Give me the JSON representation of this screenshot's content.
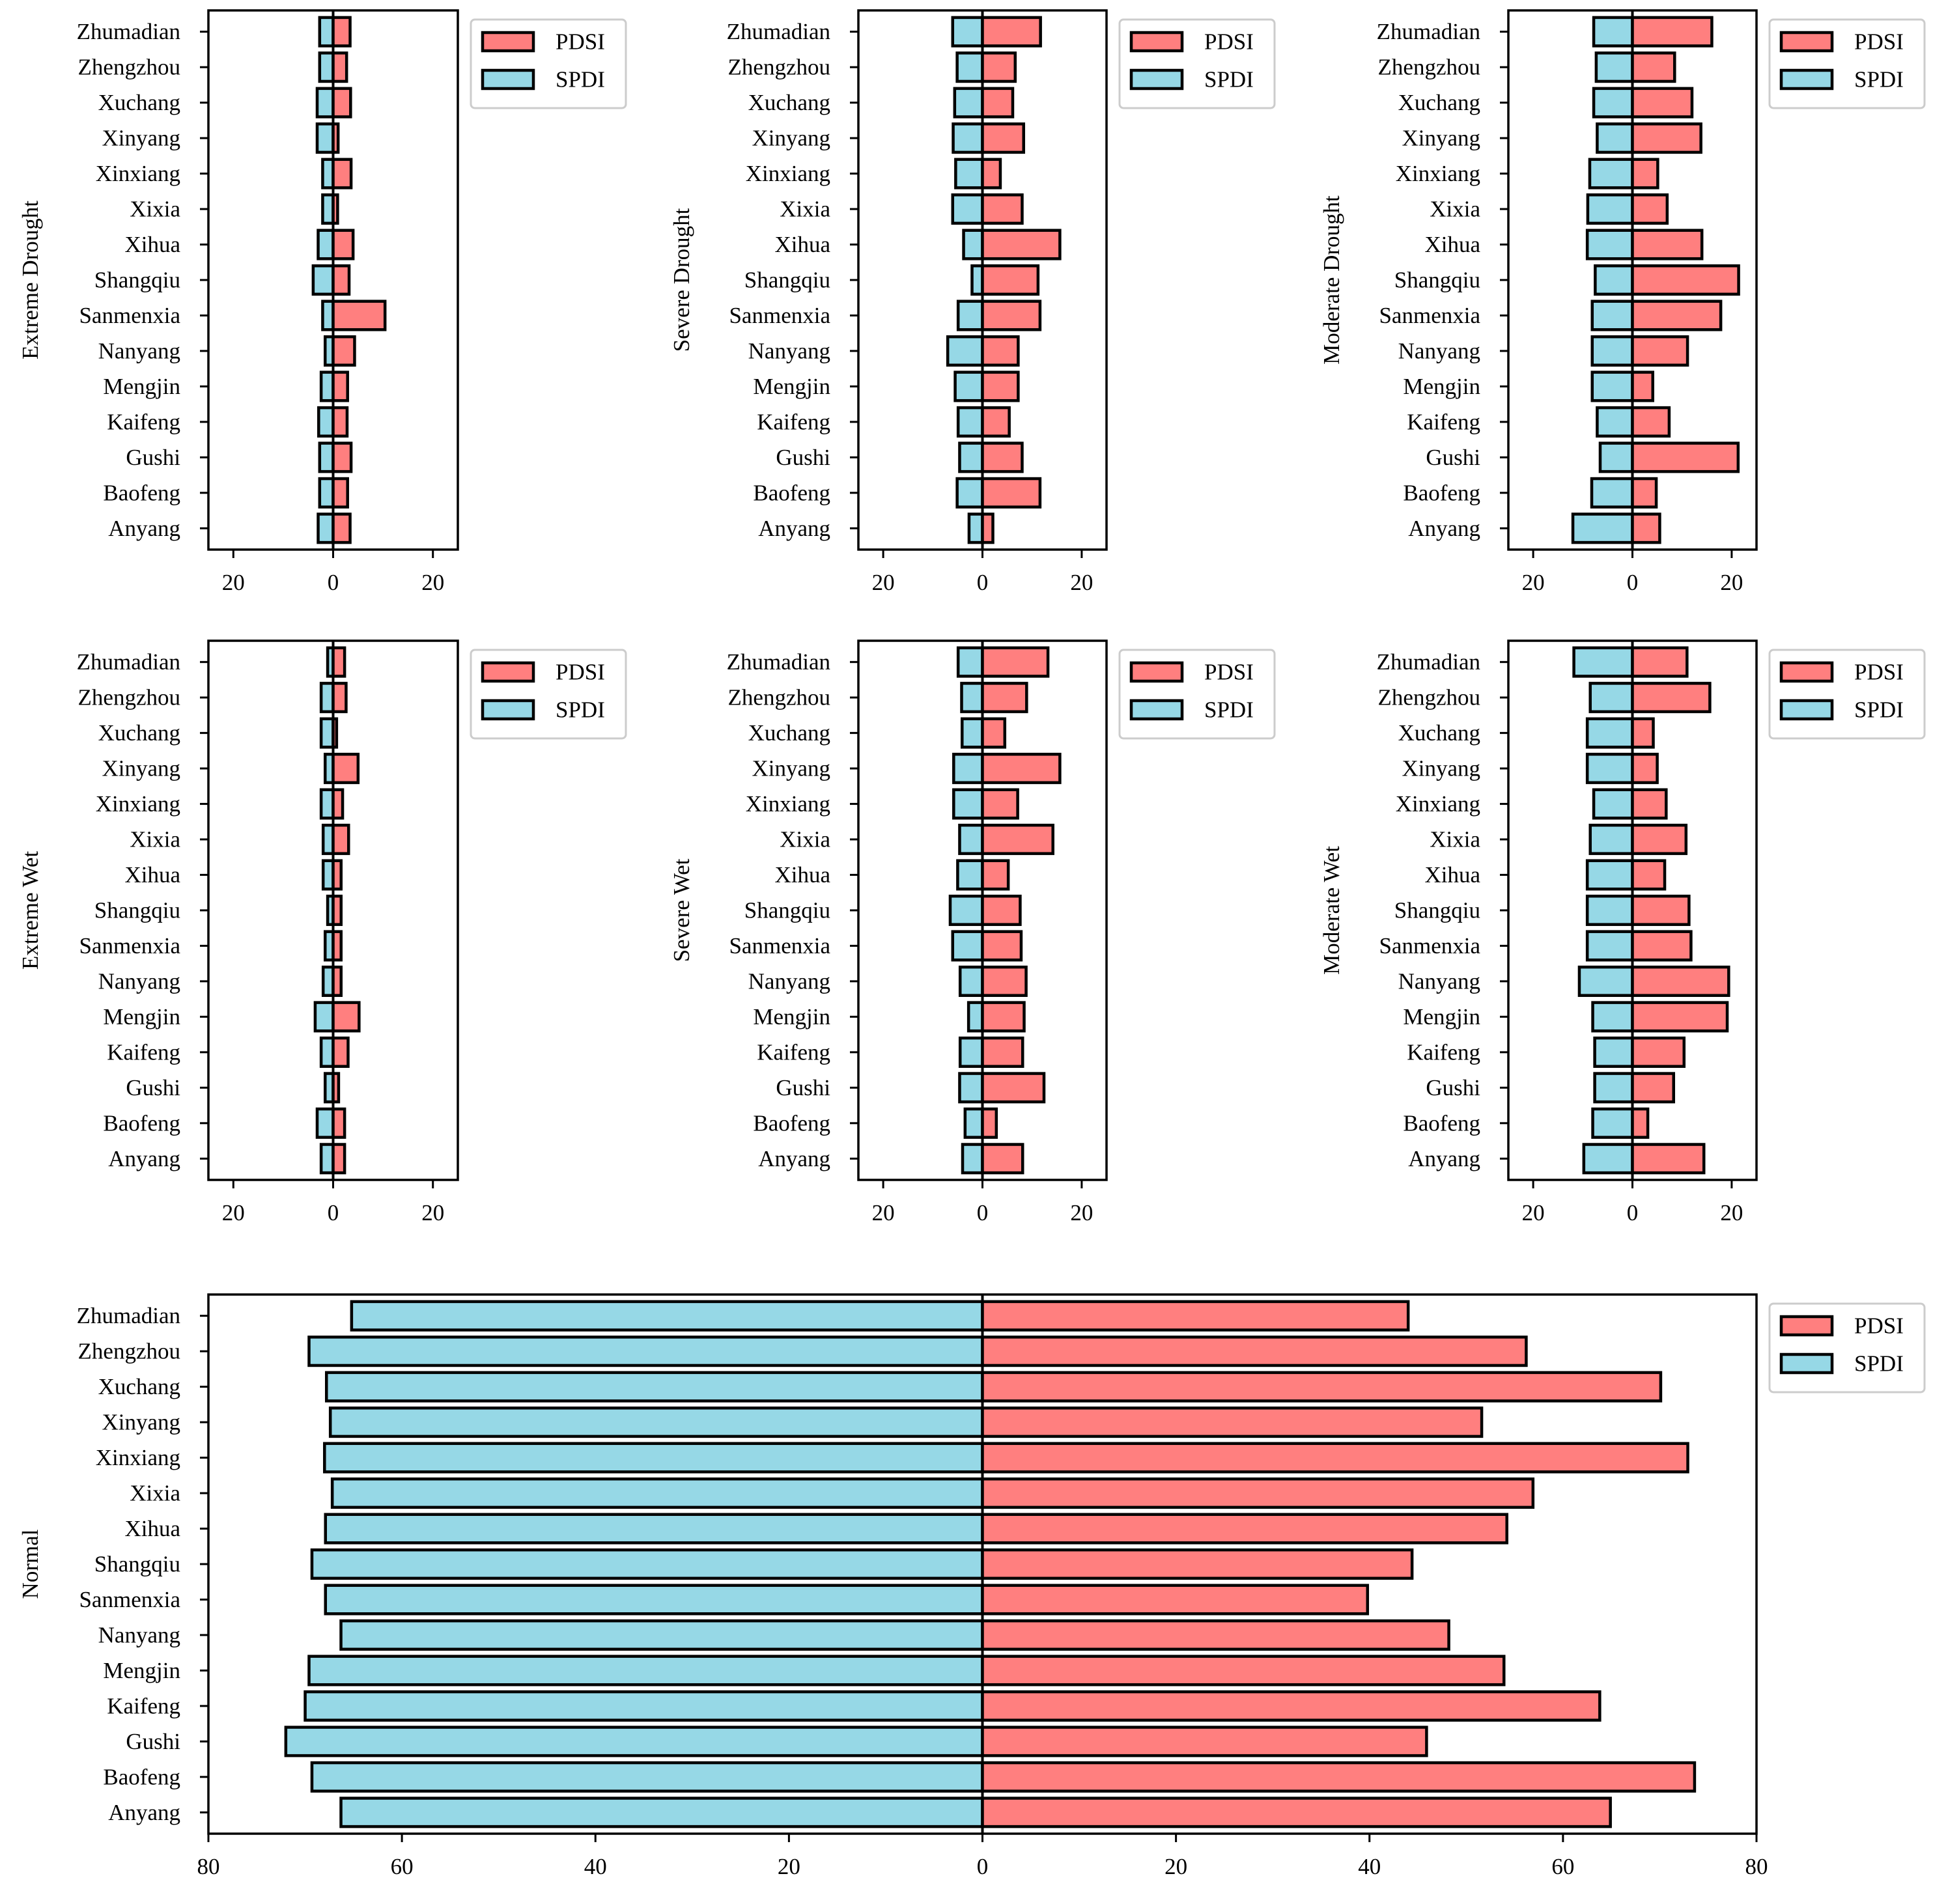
{
  "colors": {
    "pdsi": "#FF7F7F",
    "spdi": "#96D8E6",
    "edge": "#000000"
  },
  "legend_labels": [
    "PDSI",
    "SPDI"
  ],
  "chart_data": [
    {
      "type": "bar",
      "ylabel": "Extreme Drought",
      "categories": [
        "Zhumadian",
        "Zhengzhou",
        "Xuchang",
        "Xinyang",
        "Xinxiang",
        "Xixia",
        "Xihua",
        "Shangqiu",
        "Sanmenxia",
        "Nanyang",
        "Mengjin",
        "Kaifeng",
        "Gushi",
        "Baofeng",
        "Anyang"
      ],
      "series": [
        {
          "name": "PDSI",
          "values": [
            3.4,
            2.7,
            3.5,
            1.0,
            3.6,
            0.9,
            4.0,
            3.2,
            10.4,
            4.3,
            2.9,
            2.8,
            3.6,
            2.9,
            3.4
          ]
        },
        {
          "name": "SPDI",
          "values": [
            -2.7,
            -2.7,
            -3.2,
            -3.2,
            -2.1,
            -2.1,
            -3.0,
            -4.0,
            -2.1,
            -1.6,
            -2.4,
            -2.9,
            -2.7,
            -2.7,
            -3.0
          ]
        }
      ],
      "xlim": [
        -25,
        25
      ],
      "xticks": [
        -20,
        0,
        20
      ],
      "xtick_labels": [
        "20",
        "0",
        "20"
      ]
    },
    {
      "type": "bar",
      "ylabel": "Severe Drought",
      "categories": [
        "Zhumadian",
        "Zhengzhou",
        "Xuchang",
        "Xinyang",
        "Xinxiang",
        "Xixia",
        "Xihua",
        "Shangqiu",
        "Sanmenxia",
        "Nanyang",
        "Mengjin",
        "Kaifeng",
        "Gushi",
        "Baofeng",
        "Anyang"
      ],
      "series": [
        {
          "name": "PDSI",
          "values": [
            11.7,
            6.6,
            6.1,
            8.3,
            3.6,
            8.0,
            15.6,
            11.2,
            11.6,
            7.2,
            7.2,
            5.4,
            8.0,
            11.6,
            2.1
          ]
        },
        {
          "name": "SPDI",
          "values": [
            -6.0,
            -5.1,
            -5.6,
            -5.9,
            -5.4,
            -6.0,
            -3.8,
            -2.1,
            -4.9,
            -7.0,
            -5.5,
            -4.9,
            -4.6,
            -5.1,
            -2.7
          ]
        }
      ],
      "xlim": [
        -25,
        25
      ],
      "xticks": [
        -20,
        0,
        20
      ],
      "xtick_labels": [
        "20",
        "0",
        "20"
      ]
    },
    {
      "type": "bar",
      "ylabel": "Moderate Drought",
      "categories": [
        "Zhumadian",
        "Zhengzhou",
        "Xuchang",
        "Xinyang",
        "Xinxiang",
        "Xixia",
        "Xihua",
        "Shangqiu",
        "Sanmenxia",
        "Nanyang",
        "Mengjin",
        "Kaifeng",
        "Gushi",
        "Baofeng",
        "Anyang"
      ],
      "series": [
        {
          "name": "PDSI",
          "values": [
            16.0,
            8.5,
            12.0,
            13.8,
            5.1,
            7.0,
            14.0,
            21.4,
            17.8,
            11.1,
            4.1,
            7.4,
            21.3,
            4.8,
            5.5
          ]
        },
        {
          "name": "SPDI",
          "values": [
            -7.8,
            -7.3,
            -7.8,
            -7.1,
            -8.6,
            -9.0,
            -9.1,
            -7.5,
            -8.1,
            -8.1,
            -8.1,
            -7.1,
            -6.5,
            -8.2,
            -12.0
          ]
        }
      ],
      "xlim": [
        -25,
        25
      ],
      "xticks": [
        -20,
        0,
        20
      ],
      "xtick_labels": [
        "20",
        "0",
        "20"
      ]
    },
    {
      "type": "bar",
      "ylabel": "Extreme Wet",
      "categories": [
        "Zhumadian",
        "Zhengzhou",
        "Xuchang",
        "Xinyang",
        "Xinxiang",
        "Xixia",
        "Xihua",
        "Shangqiu",
        "Sanmenxia",
        "Nanyang",
        "Mengjin",
        "Kaifeng",
        "Gushi",
        "Baofeng",
        "Anyang"
      ],
      "series": [
        {
          "name": "PDSI",
          "values": [
            2.3,
            2.6,
            0.7,
            5.0,
            1.9,
            3.1,
            1.6,
            1.6,
            1.6,
            1.6,
            5.2,
            3.0,
            1.1,
            2.3,
            2.3
          ]
        },
        {
          "name": "SPDI",
          "values": [
            -1.1,
            -2.4,
            -2.4,
            -1.6,
            -2.4,
            -2.0,
            -2.0,
            -1.1,
            -1.6,
            -2.0,
            -3.6,
            -2.4,
            -1.6,
            -3.2,
            -2.4
          ]
        }
      ],
      "xlim": [
        -25,
        25
      ],
      "xticks": [
        -20,
        0,
        20
      ],
      "xtick_labels": [
        "20",
        "0",
        "20"
      ]
    },
    {
      "type": "bar",
      "ylabel": "Severe Wet",
      "categories": [
        "Zhumadian",
        "Zhengzhou",
        "Xuchang",
        "Xinyang",
        "Xinxiang",
        "Xixia",
        "Xihua",
        "Shangqiu",
        "Sanmenxia",
        "Nanyang",
        "Mengjin",
        "Kaifeng",
        "Gushi",
        "Baofeng",
        "Anyang"
      ],
      "series": [
        {
          "name": "PDSI",
          "values": [
            13.2,
            8.9,
            4.5,
            15.6,
            7.1,
            14.2,
            5.2,
            7.6,
            7.8,
            8.8,
            8.4,
            8.1,
            12.4,
            2.8,
            8.1
          ]
        },
        {
          "name": "SPDI",
          "values": [
            -4.9,
            -4.2,
            -4.1,
            -5.8,
            -5.8,
            -4.6,
            -5.0,
            -6.5,
            -6.0,
            -4.5,
            -2.8,
            -4.5,
            -4.6,
            -3.5,
            -4.0
          ]
        }
      ],
      "xlim": [
        -25,
        25
      ],
      "xticks": [
        -20,
        0,
        20
      ],
      "xtick_labels": [
        "20",
        "0",
        "20"
      ]
    },
    {
      "type": "bar",
      "ylabel": "Moderate Wet",
      "categories": [
        "Zhumadian",
        "Zhengzhou",
        "Xuchang",
        "Xinyang",
        "Xinxiang",
        "Xixia",
        "Xihua",
        "Shangqiu",
        "Sanmenxia",
        "Nanyang",
        "Mengjin",
        "Kaifeng",
        "Gushi",
        "Baofeng",
        "Anyang"
      ],
      "series": [
        {
          "name": "PDSI",
          "values": [
            11.0,
            15.6,
            4.2,
            5.0,
            6.8,
            10.8,
            6.5,
            11.4,
            11.8,
            19.4,
            19.1,
            10.4,
            8.3,
            3.1,
            14.4
          ]
        },
        {
          "name": "SPDI",
          "values": [
            -11.8,
            -8.5,
            -9.1,
            -9.1,
            -7.8,
            -8.5,
            -9.1,
            -9.1,
            -9.1,
            -10.7,
            -8.0,
            -7.6,
            -7.6,
            -8.0,
            -9.8
          ]
        }
      ],
      "xlim": [
        -25,
        25
      ],
      "xticks": [
        -20,
        0,
        20
      ],
      "xtick_labels": [
        "20",
        "0",
        "20"
      ]
    },
    {
      "type": "bar",
      "ylabel": "Normal",
      "categories": [
        "Zhumadian",
        "Zhengzhou",
        "Xuchang",
        "Xinyang",
        "Xinxiang",
        "Xixia",
        "Xihua",
        "Shangqiu",
        "Sanmenxia",
        "Nanyang",
        "Mengjin",
        "Kaifeng",
        "Gushi",
        "Baofeng",
        "Anyang"
      ],
      "series": [
        {
          "name": "PDSI",
          "values": [
            44.0,
            56.2,
            70.1,
            51.6,
            72.9,
            56.9,
            54.2,
            44.4,
            39.8,
            48.2,
            53.9,
            63.8,
            45.9,
            73.6,
            64.9
          ]
        },
        {
          "name": "SPDI",
          "values": [
            -65.2,
            -69.6,
            -67.8,
            -67.4,
            -68.0,
            -67.2,
            -67.9,
            -69.3,
            -67.9,
            -66.3,
            -69.6,
            -70.0,
            -72.0,
            -69.3,
            -66.3
          ]
        }
      ],
      "xlim": [
        -80,
        80
      ],
      "xticks": [
        -80,
        -60,
        -40,
        -20,
        0,
        20,
        40,
        60,
        80
      ],
      "xtick_labels": [
        "80",
        "60",
        "40",
        "20",
        "0",
        "20",
        "40",
        "60",
        "80"
      ]
    }
  ]
}
